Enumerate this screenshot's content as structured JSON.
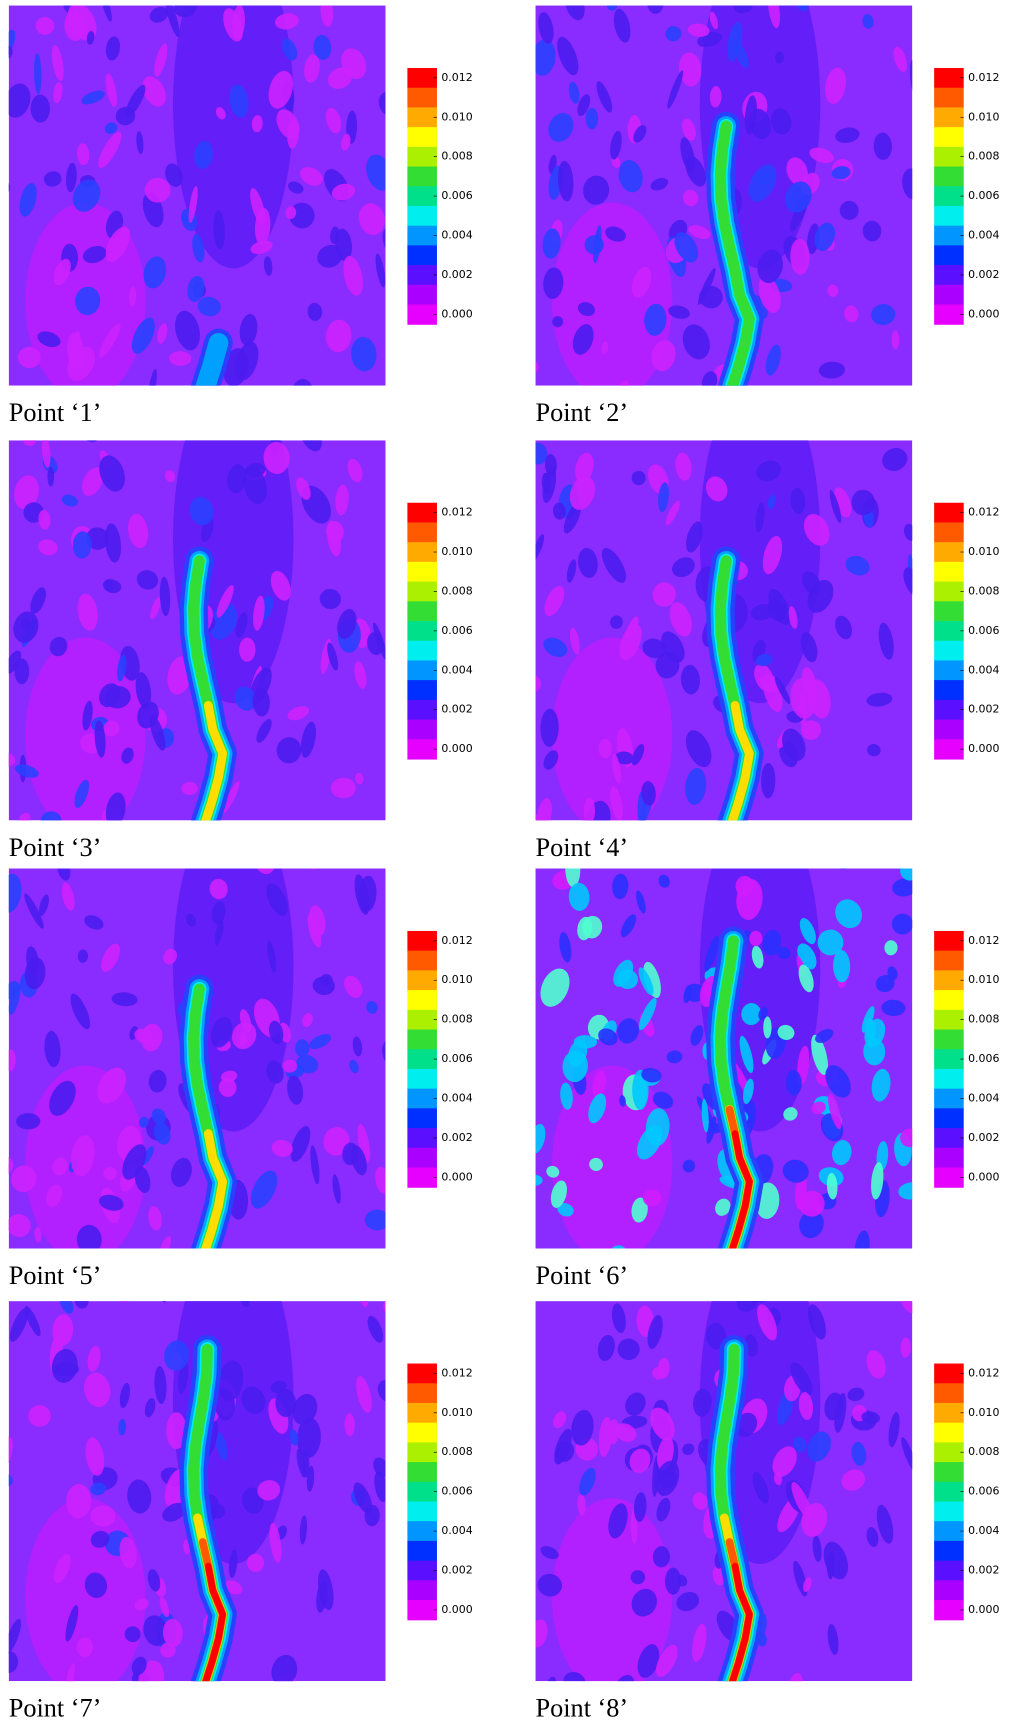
{
  "panels": [
    {
      "caption": "Point ‘1’",
      "colorbar_ticks": [
        {
          "value": 0.012,
          "label": "0.012"
        },
        {
          "value": 0.01,
          "label": "0.010"
        },
        {
          "value": 0.008,
          "label": "0.008"
        },
        {
          "value": 0.006,
          "label": "0.006"
        },
        {
          "value": 0.004,
          "label": "0.004"
        },
        {
          "value": 0.002,
          "label": "0.002"
        },
        {
          "value": 0,
          "label": "0.000"
        }
      ]
    },
    {
      "caption": "Point ‘2’",
      "colorbar_ticks": [
        {
          "value": 0.012,
          "label": "0.012"
        },
        {
          "value": 0.01,
          "label": "0.010"
        },
        {
          "value": 0.008,
          "label": "0.008"
        },
        {
          "value": 0.006,
          "label": "0.006"
        },
        {
          "value": 0.004,
          "label": "0.004"
        },
        {
          "value": 0.002,
          "label": "0.002"
        },
        {
          "value": 0,
          "label": "0.000"
        }
      ]
    },
    {
      "caption": "Point ‘3’",
      "colorbar_ticks": [
        {
          "value": 0.012,
          "label": "0.012"
        },
        {
          "value": 0.01,
          "label": "0.010"
        },
        {
          "value": 0.008,
          "label": "0.008"
        },
        {
          "value": 0.006,
          "label": "0.006"
        },
        {
          "value": 0.004,
          "label": "0.004"
        },
        {
          "value": 0.002,
          "label": "0.002"
        },
        {
          "value": 0,
          "label": "0.000"
        }
      ]
    },
    {
      "caption": "Point ‘4’",
      "colorbar_ticks": [
        {
          "value": 0.012,
          "label": "0.012"
        },
        {
          "value": 0.01,
          "label": "0.010"
        },
        {
          "value": 0.008,
          "label": "0.008"
        },
        {
          "value": 0.006,
          "label": "0.006"
        },
        {
          "value": 0.004,
          "label": "0.004"
        },
        {
          "value": 0.002,
          "label": "0.002"
        },
        {
          "value": 0,
          "label": "0.000"
        }
      ]
    },
    {
      "caption": "Point ‘5’",
      "colorbar_ticks": [
        {
          "value": 0.012,
          "label": "0.012"
        },
        {
          "value": 0.01,
          "label": "0.010"
        },
        {
          "value": 0.008,
          "label": "0.008"
        },
        {
          "value": 0.006,
          "label": "0.006"
        },
        {
          "value": 0.004,
          "label": "0.004"
        },
        {
          "value": 0.002,
          "label": "0.002"
        },
        {
          "value": 0,
          "label": "0.000"
        }
      ]
    },
    {
      "caption": "Point ‘6’",
      "colorbar_ticks": [
        {
          "value": 0.012,
          "label": "0.012"
        },
        {
          "value": 0.01,
          "label": "0.010"
        },
        {
          "value": 0.008,
          "label": "0.008"
        },
        {
          "value": 0.006,
          "label": "0.006"
        },
        {
          "value": 0.004,
          "label": "0.004"
        },
        {
          "value": 0.002,
          "label": "0.002"
        },
        {
          "value": 0,
          "label": "0.000"
        }
      ]
    },
    {
      "caption": "Point ‘7’",
      "colorbar_ticks": [
        {
          "value": 0.012,
          "label": "0.012"
        },
        {
          "value": 0.01,
          "label": "0.010"
        },
        {
          "value": 0.008,
          "label": "0.008"
        },
        {
          "value": 0.006,
          "label": "0.006"
        },
        {
          "value": 0.004,
          "label": "0.004"
        },
        {
          "value": 0.002,
          "label": "0.002"
        },
        {
          "value": 0,
          "label": "0.000"
        }
      ]
    },
    {
      "caption": "Point ‘8’",
      "colorbar_ticks": [
        {
          "value": 0.012,
          "label": "0.012"
        },
        {
          "value": 0.01,
          "label": "0.010"
        },
        {
          "value": 0.008,
          "label": "0.008"
        },
        {
          "value": 0.006,
          "label": "0.006"
        },
        {
          "value": 0.004,
          "label": "0.004"
        },
        {
          "value": 0.002,
          "label": "0.002"
        },
        {
          "value": 0,
          "label": "0.000"
        }
      ]
    }
  ]
}
